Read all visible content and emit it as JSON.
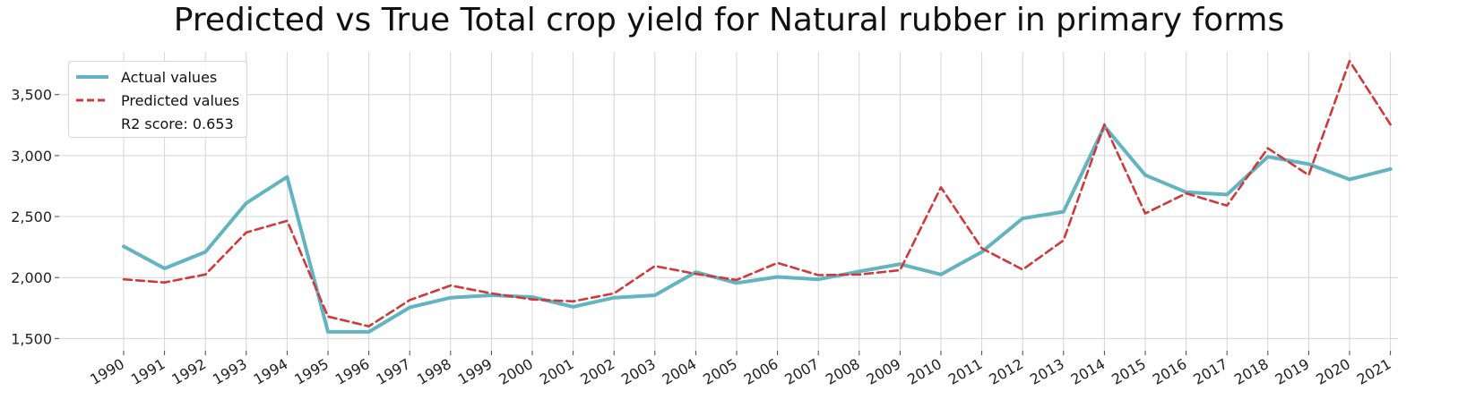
{
  "title": "Predicted vs True Total crop yield for Natural rubber in primary forms",
  "chart_data": {
    "type": "line",
    "title": "Predicted vs True Total crop yield for Natural rubber in primary forms",
    "xlabel": "",
    "ylabel": "",
    "x": [
      "1990",
      "1991",
      "1992",
      "1993",
      "1994",
      "1995",
      "1996",
      "1997",
      "1998",
      "1999",
      "2000",
      "2001",
      "2002",
      "2003",
      "2004",
      "2005",
      "2006",
      "2007",
      "2008",
      "2009",
      "2010",
      "2011",
      "2012",
      "2013",
      "2014",
      "2015",
      "2016",
      "2017",
      "2018",
      "2019",
      "2020",
      "2021"
    ],
    "y_ticks": [
      1500,
      2000,
      2500,
      3000,
      3500
    ],
    "y_tick_labels": [
      "1,500",
      "2,000",
      "2,500",
      "3,000",
      "3,500"
    ],
    "ylim": [
      1400,
      3850
    ],
    "grid": true,
    "legend_position": "top-left",
    "series": [
      {
        "name": "Actual values",
        "color": "#62b5c0",
        "style": "solid",
        "values": [
          2255,
          2075,
          2210,
          2610,
          2825,
          1555,
          1555,
          1755,
          1835,
          1855,
          1840,
          1760,
          1835,
          1855,
          2045,
          1955,
          2005,
          1985,
          2050,
          2110,
          2025,
          2210,
          2485,
          2540,
          3240,
          2840,
          2700,
          2680,
          2990,
          2930,
          2805,
          2890
        ]
      },
      {
        "name": "Predicted values",
        "color": "#d0393b",
        "style": "dashed",
        "values": [
          1985,
          1960,
          2025,
          2370,
          2465,
          1680,
          1600,
          1815,
          1935,
          1870,
          1820,
          1805,
          1870,
          2095,
          2030,
          1980,
          2120,
          2020,
          2025,
          2060,
          2740,
          2240,
          2065,
          2305,
          3255,
          2525,
          2690,
          2590,
          3060,
          2840,
          3775,
          3255
        ]
      }
    ],
    "annotation": "R2 score: 0.653"
  }
}
